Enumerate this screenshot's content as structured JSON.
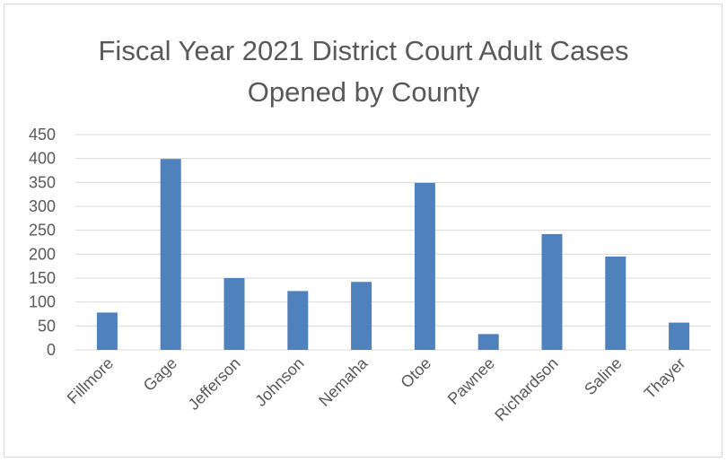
{
  "chart_data": {
    "type": "bar",
    "title_lines": [
      "Fiscal Year 2021 District Court Adult Cases",
      "Opened by County"
    ],
    "categories": [
      "Fillmore",
      "Gage",
      "Jefferson",
      "Johnson",
      "Nemaha",
      "Otoe",
      "Pawnee",
      "Richardson",
      "Saline",
      "Thayer"
    ],
    "values": [
      78,
      399,
      150,
      123,
      142,
      349,
      33,
      242,
      195,
      57
    ],
    "ylim": [
      0,
      450
    ],
    "yticks": [
      0,
      50,
      100,
      150,
      200,
      250,
      300,
      350,
      400,
      450
    ],
    "grid": true,
    "legend": "none",
    "colors": {
      "bar": "#4f81bd",
      "grid": "#d9d9d9",
      "text": "#595959"
    }
  }
}
